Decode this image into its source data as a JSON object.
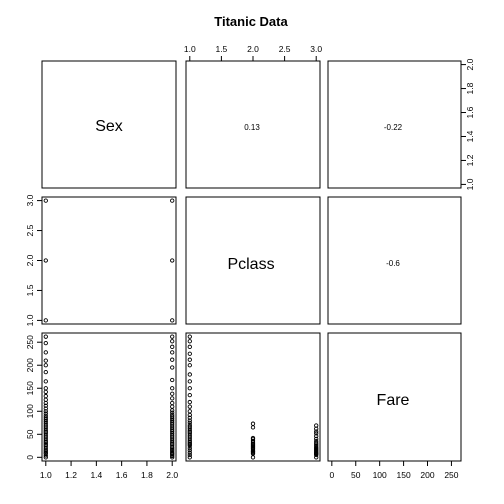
{
  "chart_data": {
    "type": "scatter",
    "subtype": "scatterplot-matrix",
    "title": "Titanic Data",
    "variables": [
      "Sex",
      "Pclass",
      "Fare"
    ],
    "upper_panels": "correlation",
    "correlations": [
      {
        "row": "Sex",
        "col": "Pclass",
        "label": "0.13"
      },
      {
        "row": "Sex",
        "col": "Fare",
        "label": "-0.22"
      },
      {
        "row": "Pclass",
        "col": "Fare",
        "label": "-0.6"
      }
    ],
    "axes": {
      "Sex": {
        "lim": [
          0.97,
          2.03
        ],
        "ticks": [
          1.0,
          1.2,
          1.4,
          1.6,
          1.8,
          2.0
        ],
        "tick_labels": [
          "1.0",
          "1.2",
          "1.4",
          "1.6",
          "1.8",
          "2.0"
        ]
      },
      "Pclass": {
        "lim": [
          0.94,
          3.06
        ],
        "ticks": [
          1.0,
          1.5,
          2.0,
          2.5,
          3.0
        ],
        "tick_labels": [
          "1.0",
          "1.5",
          "2.0",
          "2.5",
          "3.0"
        ]
      },
      "Fare": {
        "lim": [
          -8,
          270
        ],
        "ticks": [
          0,
          50,
          100,
          150,
          200,
          250
        ],
        "tick_labels": [
          "0",
          "50",
          "100",
          "150",
          "200",
          "250"
        ]
      }
    },
    "top_axis_ticks": [
      1.0,
      1.5,
      2.0,
      2.5,
      3.0
    ],
    "top_axis_labels": [
      "1.0",
      "1.5",
      "2.0",
      "2.5",
      "3.0"
    ],
    "right_axis_ticks": [
      1.0,
      1.2,
      1.4,
      1.6,
      1.8,
      2.0
    ],
    "right_axis_labels": [
      "1.0",
      "1.2",
      "1.4",
      "1.6",
      "1.8",
      "2.0"
    ],
    "points": {
      "sex_pclass": [
        [
          1,
          1
        ],
        [
          1,
          2
        ],
        [
          1,
          3
        ],
        [
          2,
          1
        ],
        [
          2,
          2
        ],
        [
          2,
          3
        ]
      ],
      "fare_by_sex": {
        "1": [
          0,
          4,
          8,
          10,
          13,
          16,
          20,
          24,
          27,
          30,
          33,
          36,
          40,
          44,
          48,
          52,
          55,
          58,
          62,
          66,
          70,
          74,
          78,
          82,
          86,
          90,
          95,
          100,
          106,
          112,
          118,
          125,
          133,
          142,
          150,
          165,
          185,
          200,
          210,
          228,
          248,
          262
        ],
        "2": [
          0,
          3,
          6,
          8,
          10,
          13,
          16,
          19,
          22,
          26,
          29,
          32,
          36,
          40,
          44,
          48,
          52,
          56,
          60,
          64,
          68,
          72,
          76,
          80,
          84,
          88,
          92,
          97,
          102,
          110,
          118,
          128,
          138,
          150,
          168,
          195,
          212,
          228,
          240,
          252,
          262
        ]
      },
      "fare_by_pclass": {
        "1": [
          0,
          5,
          10,
          15,
          20,
          25,
          28,
          30,
          33,
          36,
          40,
          44,
          48,
          52,
          55,
          58,
          62,
          66,
          70,
          75,
          80,
          86,
          92,
          100,
          110,
          120,
          135,
          150,
          165,
          180,
          200,
          212,
          225,
          240,
          252,
          262
        ],
        "2": [
          0,
          8,
          10,
          12,
          13,
          15,
          18,
          20,
          22,
          24,
          26,
          28,
          30,
          33,
          36,
          40,
          42,
          65,
          73
        ],
        "3": [
          0,
          5,
          7,
          8,
          9,
          10,
          12,
          14,
          16,
          18,
          20,
          22,
          25,
          28,
          31,
          35,
          40,
          46,
          52,
          56,
          62,
          69
        ]
      }
    }
  }
}
